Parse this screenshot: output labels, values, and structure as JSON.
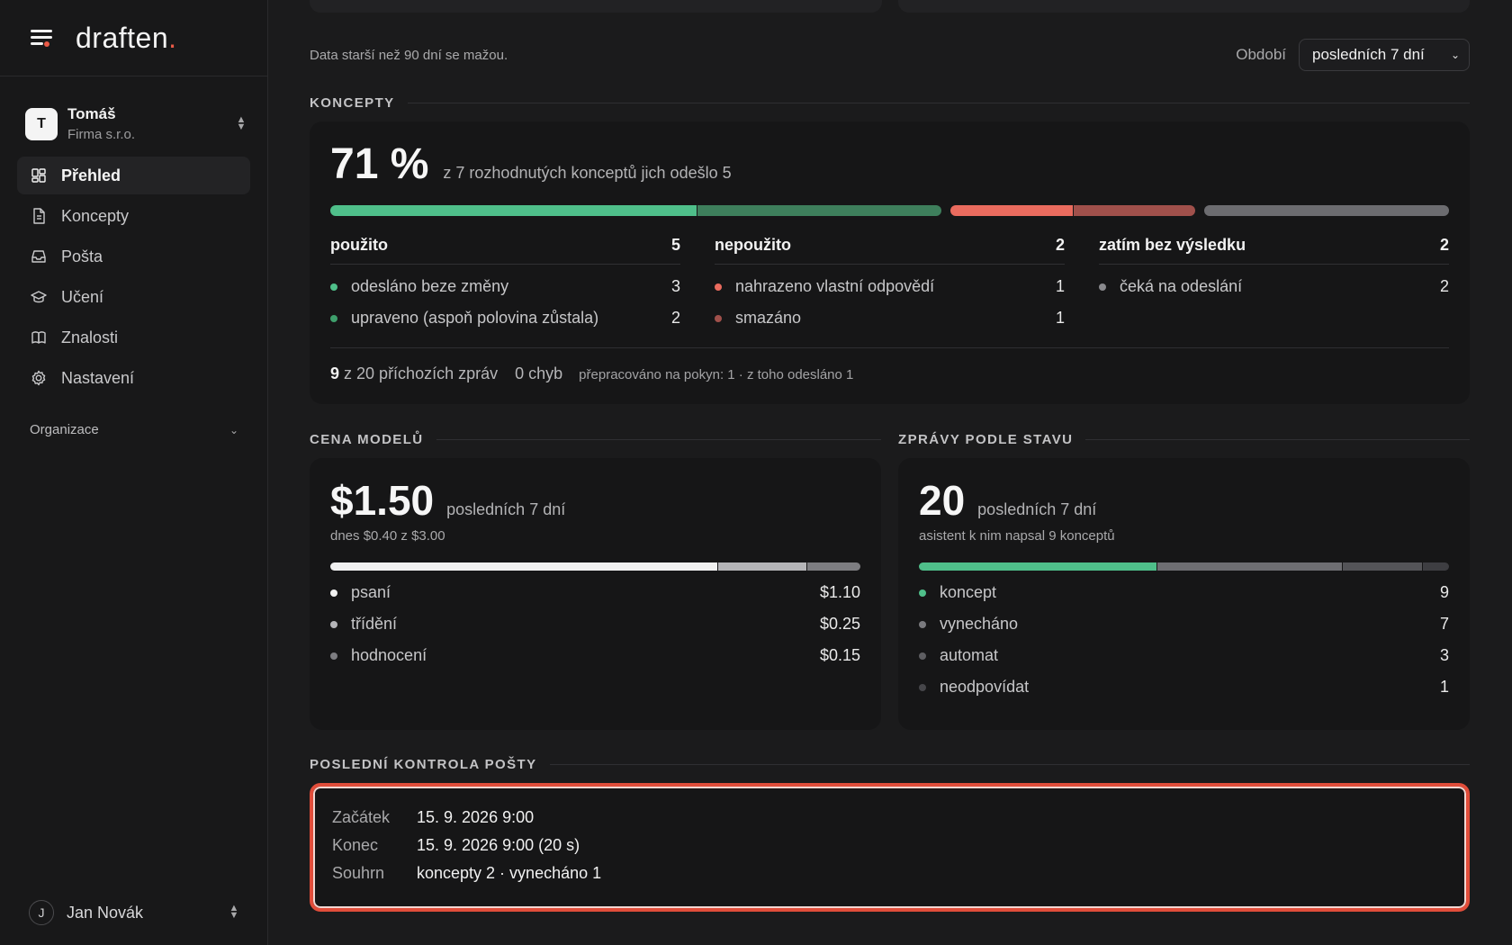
{
  "app": {
    "logo": "draften",
    "logo_dot": "."
  },
  "account": {
    "initial": "T",
    "name": "Tomáš",
    "org": "Firma s.r.o."
  },
  "nav": [
    {
      "label": "Přehled",
      "icon": "dashboard-icon",
      "active": true
    },
    {
      "label": "Koncepty",
      "icon": "document-icon"
    },
    {
      "label": "Pošta",
      "icon": "inbox-icon"
    },
    {
      "label": "Učení",
      "icon": "graduation-cap-icon"
    },
    {
      "label": "Znalosti",
      "icon": "book-icon"
    },
    {
      "label": "Nastavení",
      "icon": "gear-icon"
    }
  ],
  "org_section": {
    "label": "Organizace"
  },
  "user": {
    "initial": "J",
    "name": "Jan Novák"
  },
  "filter": {
    "retention": "Data starší než 90 dní se mažou.",
    "period_label": "Období",
    "period_value": "posledních 7 dní"
  },
  "koncepty": {
    "title": "KONCEPTY",
    "percent": "71 %",
    "summary": "z 7 rozhodnutých konceptů jich odešlo 5",
    "bar": [
      [
        {
          "fraction": 0.6,
          "color": "#4fbf8a"
        },
        {
          "fraction": 0.4,
          "color": "#3e7f5c"
        }
      ],
      [
        {
          "fraction": 0.5,
          "color": "#ea6b5e"
        },
        {
          "fraction": 0.5,
          "color": "#a0504b"
        }
      ],
      [
        {
          "fraction": 1.0,
          "color": "#6c6c70"
        }
      ]
    ],
    "columns": [
      {
        "label": "použito",
        "value": "5",
        "items": [
          {
            "label": "odesláno beze změny",
            "value": "3",
            "color": "#4fbf8a"
          },
          {
            "label": "upraveno (aspoň polovina zůstala)",
            "value": "2",
            "color": "#3e9f6c"
          }
        ]
      },
      {
        "label": "nepoužito",
        "value": "2",
        "items": [
          {
            "label": "nahrazeno vlastní odpovědí",
            "value": "1",
            "color": "#ea6b5e"
          },
          {
            "label": "smazáno",
            "value": "1",
            "color": "#a0504b"
          }
        ]
      },
      {
        "label": "zatím bez výsledku",
        "value": "2",
        "items": [
          {
            "label": "čeká na odeslání",
            "value": "2",
            "color": "#8a8a8e"
          }
        ]
      }
    ],
    "footer": {
      "incoming_count": "9",
      "incoming_text": "z 20 příchozích zpráv",
      "errors": "0 chyb",
      "reworked": "přepracováno na pokyn: 1 · z toho odesláno 1"
    }
  },
  "cena": {
    "title": "CENA MODELŮ",
    "amount": "$1.50",
    "period": "posledních 7 dní",
    "note": "dnes $0.40 z $3.00",
    "bar": [
      {
        "fraction": 0.733,
        "color": "#f1f1f1"
      },
      {
        "fraction": 0.167,
        "color": "#b5b5b8"
      },
      {
        "fraction": 0.1,
        "color": "#7d7d81"
      }
    ],
    "items": [
      {
        "label": "psaní",
        "value": "$1.10",
        "color": "#f1f1f1"
      },
      {
        "label": "třídění",
        "value": "$0.25",
        "color": "#b5b5b8"
      },
      {
        "label": "hodnocení",
        "value": "$0.15",
        "color": "#7d7d81"
      }
    ]
  },
  "zpravy": {
    "title": "ZPRÁVY PODLE STAVU",
    "count": "20",
    "period": "posledních 7 dní",
    "note": "asistent k nim napsal 9 konceptů",
    "bar": [
      {
        "fraction": 0.45,
        "color": "#4fbf8a"
      },
      {
        "fraction": 0.35,
        "color": "#6e6e72"
      },
      {
        "fraction": 0.15,
        "color": "#545458"
      },
      {
        "fraction": 0.05,
        "color": "#3e3e42"
      }
    ],
    "items": [
      {
        "label": "koncept",
        "value": "9",
        "color": "#4fbf8a"
      },
      {
        "label": "vynecháno",
        "value": "7",
        "color": "#7a7a7e"
      },
      {
        "label": "automat",
        "value": "3",
        "color": "#5e5e62"
      },
      {
        "label": "neodpovídat",
        "value": "1",
        "color": "#46464a"
      }
    ]
  },
  "last_check": {
    "title": "POSLEDNÍ KONTROLA POŠTY",
    "rows": [
      {
        "key": "Začátek",
        "value": "15. 9. 2026 9:00"
      },
      {
        "key": "Konec",
        "value": "15. 9. 2026 9:00 (20 s)"
      },
      {
        "key": "Souhrn",
        "value": "koncepty 2 · vynecháno 1"
      }
    ]
  }
}
